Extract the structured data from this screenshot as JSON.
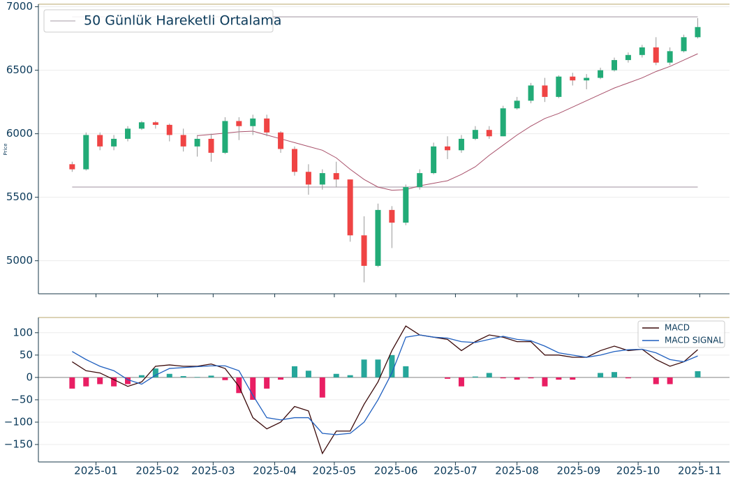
{
  "chart_data": [
    {
      "type": "candlestick",
      "ylabel": "Price",
      "x": [
        "2024-12-20",
        "2024-12-27",
        "2025-01-03",
        "2025-01-10",
        "2025-01-17",
        "2025-01-24",
        "2025-01-31",
        "2025-02-07",
        "2025-02-14",
        "2025-02-21",
        "2025-02-28",
        "2025-03-07",
        "2025-03-14",
        "2025-03-21",
        "2025-03-28",
        "2025-04-04",
        "2025-04-11",
        "2025-04-18",
        "2025-04-25",
        "2025-05-02",
        "2025-05-09",
        "2025-05-16",
        "2025-05-23",
        "2025-05-30",
        "2025-06-06",
        "2025-06-13",
        "2025-06-20",
        "2025-06-27",
        "2025-07-04",
        "2025-07-11",
        "2025-07-18",
        "2025-07-25",
        "2025-08-01",
        "2025-08-08",
        "2025-08-15",
        "2025-08-22",
        "2025-08-29",
        "2025-09-05",
        "2025-09-12",
        "2025-09-19",
        "2025-09-26",
        "2025-10-03",
        "2025-10-10",
        "2025-10-17",
        "2025-10-24",
        "2025-10-31"
      ],
      "open": [
        5760,
        5720,
        5990,
        5900,
        5960,
        6040,
        6090,
        6070,
        5990,
        5900,
        5960,
        5850,
        6100,
        6060,
        6120,
        6010,
        5880,
        5700,
        5600,
        5690,
        5640,
        5200,
        4960,
        5400,
        5300,
        5580,
        5690,
        5900,
        5870,
        5960,
        6030,
        5980,
        6200,
        6260,
        6380,
        6290,
        6450,
        6420,
        6440,
        6500,
        6580,
        6620,
        6680,
        6560,
        6650,
        6760
      ],
      "high": [
        5780,
        6010,
        6010,
        5990,
        6060,
        6100,
        6100,
        6080,
        6040,
        5990,
        6000,
        6130,
        6130,
        6150,
        6150,
        6020,
        5900,
        5760,
        5720,
        5780,
        5640,
        5350,
        5450,
        5430,
        5600,
        5720,
        5930,
        5980,
        5990,
        6060,
        6060,
        6220,
        6290,
        6400,
        6440,
        6460,
        6480,
        6470,
        6520,
        6600,
        6640,
        6700,
        6760,
        6680,
        6780,
        6910
      ],
      "low": [
        5700,
        5710,
        5870,
        5870,
        5940,
        6030,
        6040,
        5940,
        5860,
        5820,
        5780,
        5840,
        5950,
        5990,
        5980,
        5850,
        5670,
        5520,
        5560,
        5580,
        5150,
        4830,
        4950,
        5100,
        5280,
        5560,
        5680,
        5800,
        5850,
        5950,
        5960,
        5980,
        6190,
        6240,
        6250,
        6280,
        6380,
        6350,
        6430,
        6490,
        6560,
        6600,
        6540,
        6540,
        6640,
        6750
      ],
      "close": [
        5720,
        5990,
        5900,
        5960,
        6040,
        6090,
        6070,
        5990,
        5900,
        5960,
        5850,
        6100,
        6060,
        6120,
        6010,
        5880,
        5700,
        5600,
        5690,
        5640,
        5200,
        4960,
        5400,
        5300,
        5580,
        5690,
        5900,
        5870,
        5960,
        6030,
        5980,
        6200,
        6260,
        6380,
        6290,
        6450,
        6420,
        6440,
        6500,
        6580,
        6620,
        6680,
        6560,
        6650,
        6760,
        6840
      ],
      "up_color": "#22ab77",
      "down_color": "#ef4444",
      "ma": {
        "name": "50 Günlük Hareketli Ortalama",
        "color": "#a8506a",
        "values": [
          null,
          null,
          null,
          null,
          null,
          null,
          null,
          null,
          null,
          5985,
          5995,
          6005,
          6015,
          6020,
          5990,
          5960,
          5930,
          5900,
          5870,
          5810,
          5720,
          5640,
          5580,
          5555,
          5560,
          5590,
          5610,
          5630,
          5680,
          5740,
          5830,
          5910,
          5990,
          6060,
          6120,
          6160,
          6210,
          6260,
          6310,
          6360,
          6400,
          6440,
          6490,
          6530,
          6580,
          6630
        ]
      },
      "levels": {
        "values": [
          6920,
          5580
        ],
        "color": "#c4bcc4"
      },
      "xlim": [
        "2024-12-03",
        "2025-11-16"
      ],
      "ylim": [
        4740,
        7020
      ],
      "yticks": [
        5000,
        5500,
        6000,
        6500,
        7000
      ],
      "grid": true
    },
    {
      "type": "macd",
      "x": [
        "2024-12-20",
        "2024-12-27",
        "2025-01-03",
        "2025-01-10",
        "2025-01-17",
        "2025-01-24",
        "2025-01-31",
        "2025-02-07",
        "2025-02-14",
        "2025-02-21",
        "2025-02-28",
        "2025-03-07",
        "2025-03-14",
        "2025-03-21",
        "2025-03-28",
        "2025-04-04",
        "2025-04-11",
        "2025-04-18",
        "2025-04-25",
        "2025-05-02",
        "2025-05-09",
        "2025-05-16",
        "2025-05-23",
        "2025-05-30",
        "2025-06-06",
        "2025-06-13",
        "2025-06-20",
        "2025-06-27",
        "2025-07-04",
        "2025-07-11",
        "2025-07-18",
        "2025-07-25",
        "2025-08-01",
        "2025-08-08",
        "2025-08-15",
        "2025-08-22",
        "2025-08-29",
        "2025-09-05",
        "2025-09-12",
        "2025-09-19",
        "2025-09-26",
        "2025-10-03",
        "2025-10-10",
        "2025-10-17",
        "2025-10-24",
        "2025-10-31"
      ],
      "series": [
        {
          "name": "MACD",
          "color": "#3b0a0a",
          "values": [
            35,
            15,
            10,
            -5,
            -20,
            -10,
            25,
            28,
            25,
            25,
            30,
            20,
            -20,
            -90,
            -115,
            -100,
            -65,
            -75,
            -170,
            -120,
            -120,
            -60,
            -10,
            60,
            115,
            95,
            90,
            85,
            60,
            80,
            95,
            90,
            80,
            80,
            50,
            50,
            45,
            45,
            60,
            70,
            60,
            63,
            40,
            25,
            35,
            62
          ]
        },
        {
          "name": "MACD SIGNAL",
          "color": "#1f5fbf",
          "values": [
            58,
            40,
            25,
            15,
            -5,
            -15,
            5,
            20,
            22,
            24,
            26,
            26,
            15,
            -40,
            -90,
            -95,
            -90,
            -90,
            -125,
            -128,
            -125,
            -100,
            -50,
            10,
            90,
            95,
            90,
            88,
            80,
            78,
            85,
            92,
            85,
            82,
            70,
            55,
            50,
            45,
            50,
            58,
            62,
            63,
            55,
            40,
            35,
            48
          ]
        }
      ],
      "histogram": {
        "up_color": "#26a69a",
        "down_color": "#e91e63",
        "values": [
          -25,
          -20,
          -15,
          -20,
          -15,
          5,
          20,
          8,
          3,
          1,
          4,
          -6,
          -35,
          -50,
          -25,
          -5,
          25,
          15,
          -45,
          8,
          5,
          40,
          40,
          50,
          25,
          0,
          0,
          -3,
          -20,
          2,
          10,
          -2,
          -5,
          -2,
          -20,
          -5,
          -5,
          0,
          10,
          12,
          -2,
          0,
          -15,
          -15,
          0,
          14
        ]
      },
      "xlim": [
        "2024-12-03",
        "2025-11-16"
      ],
      "xticks": [
        {
          "value": "2025-01-01",
          "label": "2025-01"
        },
        {
          "value": "2025-02-01",
          "label": "2025-02"
        },
        {
          "value": "2025-03-01",
          "label": "2025-03"
        },
        {
          "value": "2025-04-01",
          "label": "2025-04"
        },
        {
          "value": "2025-05-01",
          "label": "2025-05"
        },
        {
          "value": "2025-06-01",
          "label": "2025-06"
        },
        {
          "value": "2025-07-01",
          "label": "2025-07"
        },
        {
          "value": "2025-08-01",
          "label": "2025-08"
        },
        {
          "value": "2025-09-01",
          "label": "2025-09"
        },
        {
          "value": "2025-10-01",
          "label": "2025-10"
        },
        {
          "value": "2025-11-01",
          "label": "2025-11"
        }
      ],
      "ylim": [
        -189,
        134
      ],
      "yticks": [
        {
          "value": -150,
          "label": "−150"
        },
        {
          "value": -100,
          "label": "−100"
        },
        {
          "value": -50,
          "label": "−50"
        },
        0,
        50,
        100
      ],
      "grid": true
    }
  ]
}
